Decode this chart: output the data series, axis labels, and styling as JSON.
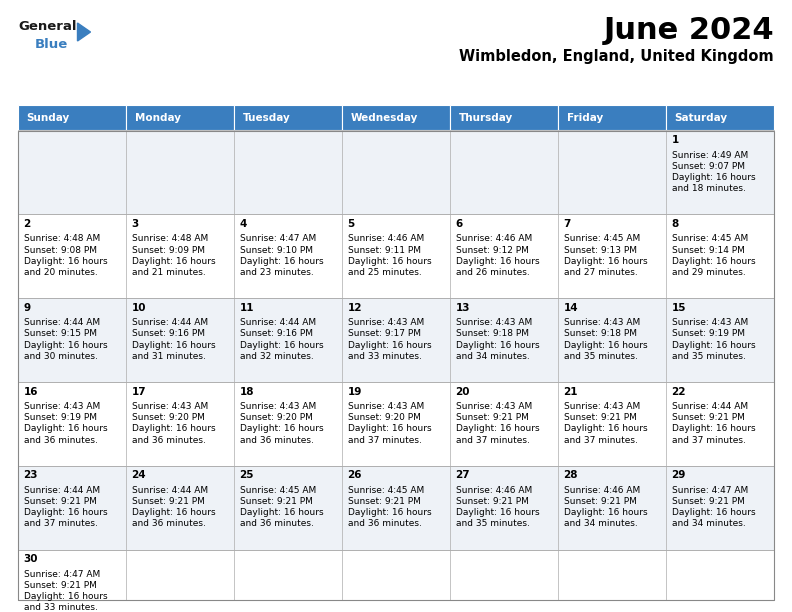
{
  "title": "June 2024",
  "subtitle": "Wimbledon, England, United Kingdom",
  "days_of_week": [
    "Sunday",
    "Monday",
    "Tuesday",
    "Wednesday",
    "Thursday",
    "Friday",
    "Saturday"
  ],
  "header_bg": "#3a7ebf",
  "header_text": "#ffffff",
  "cell_bg_even": "#eef2f7",
  "cell_bg_odd": "#ffffff",
  "grid_color": "#aaaaaa",
  "text_color": "#000000",
  "calendar_data": {
    "1": {
      "sunrise": "4:49 AM",
      "sunset": "9:07 PM",
      "daylight": "16 hours and 18 minutes.",
      "col": 6,
      "row": 0
    },
    "2": {
      "sunrise": "4:48 AM",
      "sunset": "9:08 PM",
      "daylight": "16 hours and 20 minutes.",
      "col": 0,
      "row": 1
    },
    "3": {
      "sunrise": "4:48 AM",
      "sunset": "9:09 PM",
      "daylight": "16 hours and 21 minutes.",
      "col": 1,
      "row": 1
    },
    "4": {
      "sunrise": "4:47 AM",
      "sunset": "9:10 PM",
      "daylight": "16 hours and 23 minutes.",
      "col": 2,
      "row": 1
    },
    "5": {
      "sunrise": "4:46 AM",
      "sunset": "9:11 PM",
      "daylight": "16 hours and 25 minutes.",
      "col": 3,
      "row": 1
    },
    "6": {
      "sunrise": "4:46 AM",
      "sunset": "9:12 PM",
      "daylight": "16 hours and 26 minutes.",
      "col": 4,
      "row": 1
    },
    "7": {
      "sunrise": "4:45 AM",
      "sunset": "9:13 PM",
      "daylight": "16 hours and 27 minutes.",
      "col": 5,
      "row": 1
    },
    "8": {
      "sunrise": "4:45 AM",
      "sunset": "9:14 PM",
      "daylight": "16 hours and 29 minutes.",
      "col": 6,
      "row": 1
    },
    "9": {
      "sunrise": "4:44 AM",
      "sunset": "9:15 PM",
      "daylight": "16 hours and 30 minutes.",
      "col": 0,
      "row": 2
    },
    "10": {
      "sunrise": "4:44 AM",
      "sunset": "9:16 PM",
      "daylight": "16 hours and 31 minutes.",
      "col": 1,
      "row": 2
    },
    "11": {
      "sunrise": "4:44 AM",
      "sunset": "9:16 PM",
      "daylight": "16 hours and 32 minutes.",
      "col": 2,
      "row": 2
    },
    "12": {
      "sunrise": "4:43 AM",
      "sunset": "9:17 PM",
      "daylight": "16 hours and 33 minutes.",
      "col": 3,
      "row": 2
    },
    "13": {
      "sunrise": "4:43 AM",
      "sunset": "9:18 PM",
      "daylight": "16 hours and 34 minutes.",
      "col": 4,
      "row": 2
    },
    "14": {
      "sunrise": "4:43 AM",
      "sunset": "9:18 PM",
      "daylight": "16 hours and 35 minutes.",
      "col": 5,
      "row": 2
    },
    "15": {
      "sunrise": "4:43 AM",
      "sunset": "9:19 PM",
      "daylight": "16 hours and 35 minutes.",
      "col": 6,
      "row": 2
    },
    "16": {
      "sunrise": "4:43 AM",
      "sunset": "9:19 PM",
      "daylight": "16 hours and 36 minutes.",
      "col": 0,
      "row": 3
    },
    "17": {
      "sunrise": "4:43 AM",
      "sunset": "9:20 PM",
      "daylight": "16 hours and 36 minutes.",
      "col": 1,
      "row": 3
    },
    "18": {
      "sunrise": "4:43 AM",
      "sunset": "9:20 PM",
      "daylight": "16 hours and 36 minutes.",
      "col": 2,
      "row": 3
    },
    "19": {
      "sunrise": "4:43 AM",
      "sunset": "9:20 PM",
      "daylight": "16 hours and 37 minutes.",
      "col": 3,
      "row": 3
    },
    "20": {
      "sunrise": "4:43 AM",
      "sunset": "9:21 PM",
      "daylight": "16 hours and 37 minutes.",
      "col": 4,
      "row": 3
    },
    "21": {
      "sunrise": "4:43 AM",
      "sunset": "9:21 PM",
      "daylight": "16 hours and 37 minutes.",
      "col": 5,
      "row": 3
    },
    "22": {
      "sunrise": "4:44 AM",
      "sunset": "9:21 PM",
      "daylight": "16 hours and 37 minutes.",
      "col": 6,
      "row": 3
    },
    "23": {
      "sunrise": "4:44 AM",
      "sunset": "9:21 PM",
      "daylight": "16 hours and 37 minutes.",
      "col": 0,
      "row": 4
    },
    "24": {
      "sunrise": "4:44 AM",
      "sunset": "9:21 PM",
      "daylight": "16 hours and 36 minutes.",
      "col": 1,
      "row": 4
    },
    "25": {
      "sunrise": "4:45 AM",
      "sunset": "9:21 PM",
      "daylight": "16 hours and 36 minutes.",
      "col": 2,
      "row": 4
    },
    "26": {
      "sunrise": "4:45 AM",
      "sunset": "9:21 PM",
      "daylight": "16 hours and 36 minutes.",
      "col": 3,
      "row": 4
    },
    "27": {
      "sunrise": "4:46 AM",
      "sunset": "9:21 PM",
      "daylight": "16 hours and 35 minutes.",
      "col": 4,
      "row": 4
    },
    "28": {
      "sunrise": "4:46 AM",
      "sunset": "9:21 PM",
      "daylight": "16 hours and 34 minutes.",
      "col": 5,
      "row": 4
    },
    "29": {
      "sunrise": "4:47 AM",
      "sunset": "9:21 PM",
      "daylight": "16 hours and 34 minutes.",
      "col": 6,
      "row": 4
    },
    "30": {
      "sunrise": "4:47 AM",
      "sunset": "9:21 PM",
      "daylight": "16 hours and 33 minutes.",
      "col": 0,
      "row": 5
    }
  },
  "n_rows": 6,
  "n_cols": 7,
  "logo_general_color": "#1a1a1a",
  "logo_blue_color": "#3a7ebf",
  "logo_triangle_color": "#3a7ebf"
}
